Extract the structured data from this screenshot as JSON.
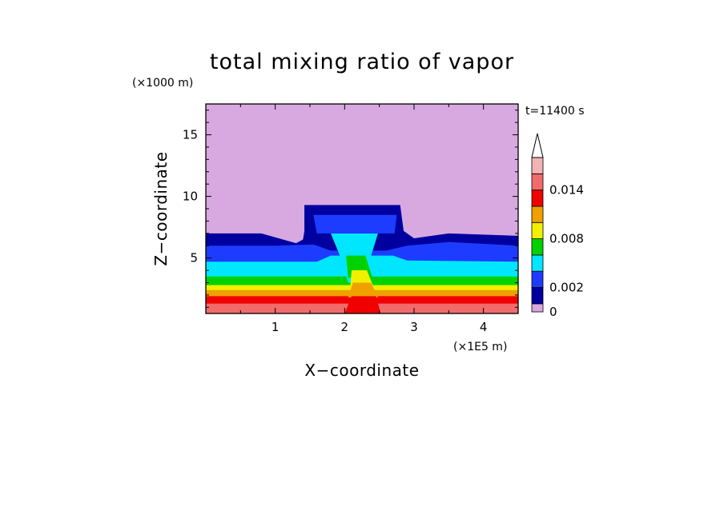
{
  "chart_data": {
    "type": "heatmap",
    "title": "total mixing ratio of vapor",
    "xlabel": "X−coordinate",
    "ylabel": "Z−coordinate",
    "x_unit": "(×1E5 m)",
    "y_unit": "(×1000 m)",
    "time_label": "t=11400 s",
    "xlim": [
      0,
      4.5
    ],
    "ylim": [
      0.5,
      17.5
    ],
    "x_ticks": [
      1,
      2,
      3,
      4
    ],
    "y_ticks": [
      5,
      10,
      15
    ],
    "colorbar": {
      "levels": [
        0,
        0.001,
        0.002,
        0.004,
        0.006,
        0.008,
        0.01,
        0.012,
        0.014,
        0.016
      ],
      "labels": [
        "0",
        "0.002",
        "0.008",
        "0.014"
      ],
      "label_values": [
        0,
        0.002,
        0.008,
        0.014
      ],
      "colors": [
        "#d8a8e0",
        "#0000a0",
        "#1e3cff",
        "#00e6ff",
        "#00d200",
        "#f0f000",
        "#f0a000",
        "#f00000",
        "#f26a6a",
        "#f2b3b3"
      ],
      "extend": "max"
    },
    "bands": [
      {
        "level": 0.014,
        "color": "#f26a6a",
        "top": [
          [
            0,
            1.3
          ],
          [
            4.5,
            1.3
          ]
        ]
      },
      {
        "level": 0.012,
        "color": "#f00000",
        "top": [
          [
            0,
            1.9
          ],
          [
            4.5,
            1.9
          ]
        ]
      },
      {
        "level": 0.01,
        "color": "#f0a000",
        "top": [
          [
            0,
            2.4
          ],
          [
            4.5,
            2.4
          ]
        ]
      },
      {
        "level": 0.008,
        "color": "#f0f000",
        "top": [
          [
            0,
            2.8
          ],
          [
            4.5,
            2.8
          ]
        ]
      },
      {
        "level": 0.006,
        "color": "#00d200",
        "top": [
          [
            0,
            3.5
          ],
          [
            4.5,
            3.5
          ]
        ]
      },
      {
        "level": 0.004,
        "color": "#00e6ff",
        "top": [
          [
            0,
            4.7
          ],
          [
            1.6,
            4.7
          ],
          [
            1.8,
            5.2
          ],
          [
            2.7,
            5.2
          ],
          [
            2.9,
            4.8
          ],
          [
            4.5,
            4.7
          ]
        ]
      },
      {
        "level": 0.002,
        "color": "#1e3cff",
        "top": [
          [
            0,
            6.0
          ],
          [
            1.0,
            6.0
          ],
          [
            1.55,
            6.1
          ],
          [
            1.8,
            5.6
          ],
          [
            2.6,
            5.6
          ],
          [
            2.9,
            6.0
          ],
          [
            3.5,
            6.3
          ],
          [
            4.5,
            6.0
          ]
        ]
      },
      {
        "level": 0.001,
        "color": "#0000a0",
        "top": [
          [
            0,
            7.0
          ],
          [
            0.8,
            7.0
          ],
          [
            1.05,
            6.6
          ],
          [
            1.3,
            6.2
          ],
          [
            1.4,
            6.5
          ],
          [
            1.42,
            7.2
          ],
          [
            1.42,
            9.3
          ],
          [
            2.8,
            9.3
          ],
          [
            2.85,
            7.2
          ],
          [
            3.0,
            6.6
          ],
          [
            3.5,
            7.0
          ],
          [
            4.5,
            6.8
          ]
        ]
      }
    ],
    "column": [
      {
        "color": "#00e6ff",
        "poly": [
          [
            1.8,
            7.0
          ],
          [
            2.48,
            7.0
          ],
          [
            2.36,
            4.8
          ],
          [
            2.32,
            3.0
          ],
          [
            2.05,
            3.0
          ],
          [
            1.96,
            4.8
          ]
        ]
      },
      {
        "color": "#1e3cff",
        "poly": [
          [
            1.55,
            8.5
          ],
          [
            2.75,
            8.5
          ],
          [
            2.72,
            7.0
          ],
          [
            1.6,
            7.0
          ]
        ]
      },
      {
        "color": "#00d200",
        "poly": [
          [
            2.02,
            5.2
          ],
          [
            2.3,
            5.2
          ],
          [
            2.4,
            3.4
          ],
          [
            2.05,
            3.4
          ]
        ]
      },
      {
        "color": "#f0f000",
        "poly": [
          [
            2.1,
            4.0
          ],
          [
            2.32,
            4.0
          ],
          [
            2.42,
            2.6
          ],
          [
            2.08,
            2.6
          ]
        ]
      },
      {
        "color": "#f0a000",
        "poly": [
          [
            2.12,
            3.0
          ],
          [
            2.38,
            3.0
          ],
          [
            2.48,
            1.8
          ],
          [
            2.05,
            1.8
          ]
        ]
      },
      {
        "color": "#f00000",
        "poly": [
          [
            2.1,
            1.9
          ],
          [
            2.45,
            1.9
          ],
          [
            2.52,
            0.5
          ],
          [
            2.0,
            0.5
          ]
        ]
      }
    ]
  }
}
